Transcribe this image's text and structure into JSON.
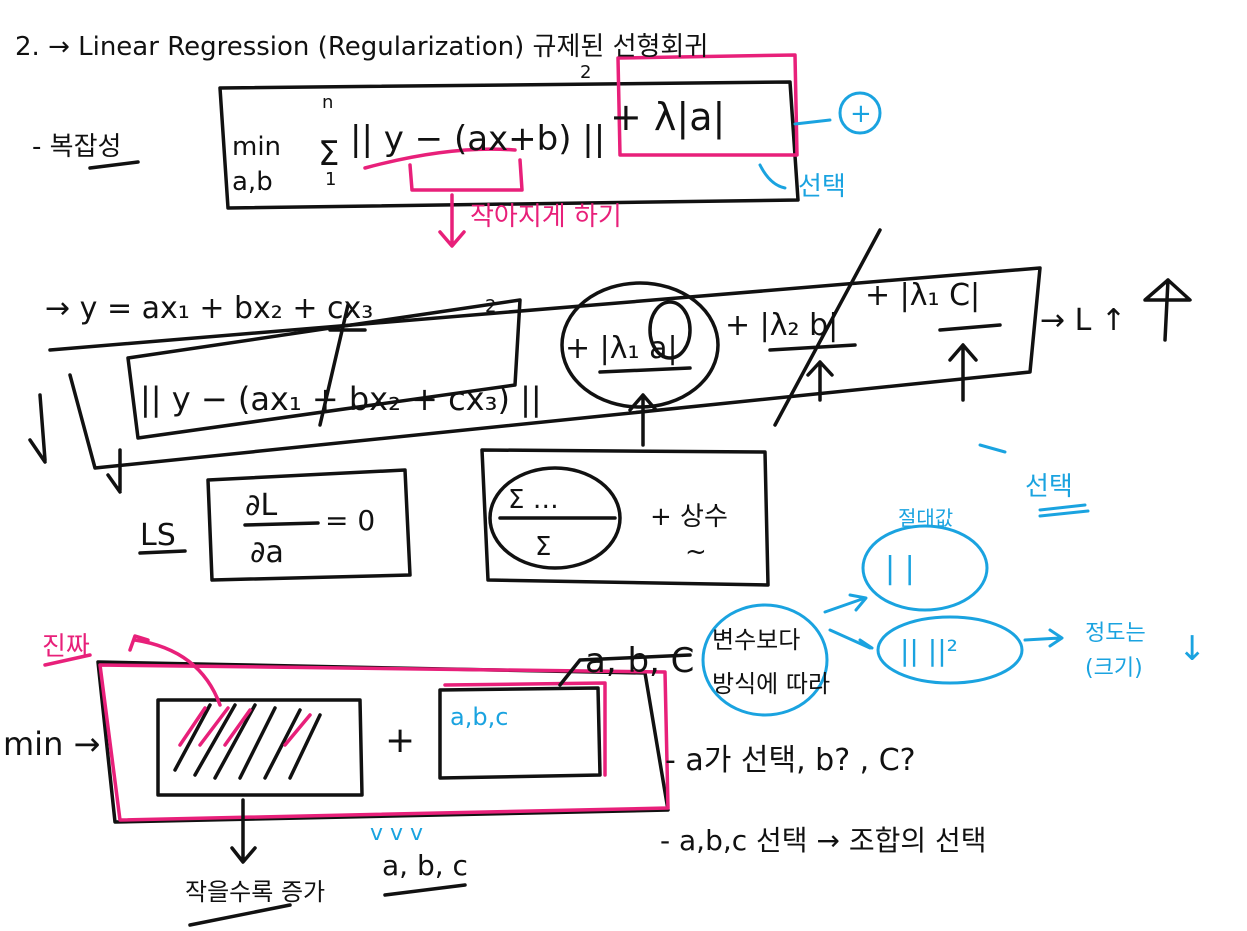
{
  "header": {
    "title": "2. → Linear Regression (Regularization) 규제된 선형회귀"
  },
  "section1": {
    "label": "- 복잡성",
    "min": "min",
    "min_sub": "a,b",
    "sum": "Σ",
    "sum_top": "n",
    "sum_bottom": "1",
    "loss": "|| y − (ax+b) ||",
    "exponent": "2",
    "penalty": "+ λ|a|",
    "plus_icon": "+",
    "select": "선택",
    "note": "작아지게 하기"
  },
  "section2": {
    "equation": "→ y = ax₁ + bx₂ + cx₃",
    "loss": "|| y − (ax₁ + bx₂ + cx₃) ||",
    "exponent": "2",
    "term_a": "+ |λ₁ a|",
    "term_b": "+ |λ₂ b|",
    "term_c": "+ |λ₁ C|",
    "result": "→ L ↑"
  },
  "section3": {
    "ls": "LS",
    "derivative_top": "∂L",
    "derivative_bottom": "∂a",
    "derivative_eq": "= 0",
    "fraction_top": "Σ …",
    "fraction_bottom": "Σ",
    "constant": "+ 상수",
    "tilde": "~"
  },
  "section4": {
    "abs_label": "절대값",
    "select": "선택",
    "abs_shape": "|  |",
    "square_shape": "||  ||²",
    "degree": "정도는",
    "size": "(크기)",
    "down": "↓",
    "method_1": "변수보다",
    "method_2": "방식에 따라"
  },
  "section5": {
    "real": "진짜",
    "abc_top": "a, b, C",
    "min": "min →",
    "plus": "+",
    "abc_box": "a,b,c",
    "choice_a": "- a가 선택, b? , C?",
    "choice_abc": "- a,b,c 선택 → 조합의 선택",
    "decrease": "작을수록 증가",
    "checks": "v  v v",
    "abc_bottom": "a, b, c"
  }
}
